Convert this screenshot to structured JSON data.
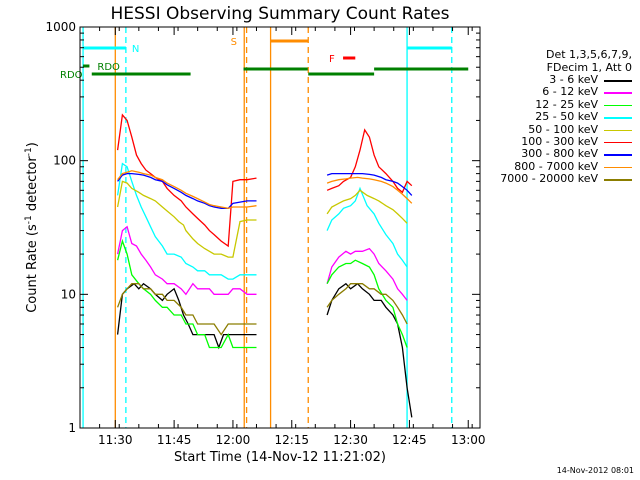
{
  "chart_data": {
    "type": "line",
    "title": "HESSI Observing Summary Count Rates",
    "xlabel": "Start Time (14-Nov-12 11:21:02)",
    "ylabel_main": "Count Rate (s",
    "ylabel_exp1": "-1",
    "ylabel_mid": " detector",
    "ylabel_exp2": "-1",
    "ylabel_end": ")",
    "yscale": "log",
    "ylim": [
      1,
      1000
    ],
    "xlim": [
      11.35,
      13.05
    ],
    "x_ticks": [
      {
        "v": 11.5,
        "label": "11:30"
      },
      {
        "v": 11.75,
        "label": "11:45"
      },
      {
        "v": 12.0,
        "label": "12:00"
      },
      {
        "v": 12.25,
        "label": "12:15"
      },
      {
        "v": 12.5,
        "label": "12:30"
      },
      {
        "v": 12.75,
        "label": "12:45"
      },
      {
        "v": 13.0,
        "label": "13:00"
      }
    ],
    "y_ticks": [
      {
        "v": 1,
        "label": "1"
      },
      {
        "v": 10,
        "label": "10"
      },
      {
        "v": 100,
        "label": "100"
      },
      {
        "v": 1000,
        "label": "1000"
      }
    ],
    "legend_header": [
      "Det 1,3,5,6,7,9,",
      "FDecim 1, Att 0"
    ],
    "series": [
      {
        "name": "3 - 6 keV",
        "color": "#000000",
        "x": [
          11.51,
          11.53,
          11.55,
          11.58,
          11.6,
          11.62,
          11.65,
          11.67,
          11.7,
          11.72,
          11.75,
          11.77,
          11.79,
          11.81,
          11.83,
          11.85,
          11.88,
          11.9,
          11.92,
          11.94,
          11.96,
          11.98,
          12.0,
          12.02,
          12.05,
          12.08,
          12.1
        ],
        "y": [
          5,
          10,
          11,
          12,
          11,
          12,
          11,
          10,
          9,
          10,
          11,
          9,
          7,
          6,
          5,
          5,
          5,
          5,
          5,
          4,
          5,
          5,
          5,
          5,
          5,
          5,
          5
        ],
        "x2": [
          12.4,
          12.42,
          12.45,
          12.48,
          12.5,
          12.53,
          12.55,
          12.58,
          12.6,
          12.63,
          12.65,
          12.68,
          12.7,
          12.72,
          12.74,
          12.76
        ],
        "y2": [
          7,
          9,
          11,
          12,
          11,
          12,
          11,
          10,
          9,
          9,
          8,
          7,
          6,
          4,
          2,
          1.2
        ]
      },
      {
        "name": "6 - 12 keV",
        "color": "#ff00ff",
        "x": [
          11.51,
          11.53,
          11.55,
          11.57,
          11.59,
          11.61,
          11.63,
          11.65,
          11.67,
          11.7,
          11.72,
          11.75,
          11.78,
          11.8,
          11.83,
          11.85,
          11.88,
          11.9,
          11.92,
          11.95,
          11.98,
          12.0,
          12.03,
          12.06,
          12.08,
          12.1
        ],
        "y": [
          20,
          30,
          32,
          24,
          23,
          20,
          18,
          16,
          14,
          13,
          12,
          12,
          11,
          10,
          12,
          11,
          11,
          11,
          10,
          10,
          10,
          11,
          11,
          10,
          10,
          10
        ],
        "x2": [
          12.4,
          12.42,
          12.45,
          12.48,
          12.5,
          12.52,
          12.55,
          12.58,
          12.6,
          12.62,
          12.65,
          12.68,
          12.7,
          12.72,
          12.74
        ],
        "y2": [
          12,
          16,
          19,
          21,
          20,
          21,
          21,
          22,
          20,
          17,
          15,
          13,
          11,
          10,
          9
        ]
      },
      {
        "name": "12 - 25 keV",
        "color": "#00ff00",
        "x": [
          11.51,
          11.53,
          11.55,
          11.57,
          11.6,
          11.62,
          11.65,
          11.67,
          11.7,
          11.72,
          11.75,
          11.78,
          11.8,
          11.83,
          11.85,
          11.88,
          11.9,
          11.92,
          11.95,
          11.98,
          12.0,
          12.03,
          12.06,
          12.1
        ],
        "y": [
          18,
          25,
          20,
          14,
          12,
          11,
          10,
          9,
          8,
          8,
          7,
          7,
          6,
          6,
          5,
          5,
          4,
          4,
          4,
          5,
          4,
          4,
          4,
          4
        ],
        "x2": [
          12.4,
          12.42,
          12.45,
          12.48,
          12.5,
          12.52,
          12.55,
          12.58,
          12.6,
          12.62,
          12.65,
          12.68,
          12.7,
          12.72,
          12.74
        ],
        "y2": [
          12,
          14,
          16,
          17,
          17,
          18,
          17,
          16,
          14,
          11,
          9,
          8,
          6,
          5,
          4
        ]
      },
      {
        "name": "25 - 50 keV",
        "color": "#00ffff",
        "x": [
          11.51,
          11.53,
          11.55,
          11.57,
          11.59,
          11.61,
          11.63,
          11.65,
          11.67,
          11.7,
          11.72,
          11.75,
          11.78,
          11.8,
          11.83,
          11.85,
          11.88,
          11.9,
          11.92,
          11.95,
          11.98,
          12.0,
          12.03,
          12.06,
          12.1
        ],
        "y": [
          55,
          95,
          90,
          70,
          55,
          45,
          38,
          32,
          27,
          23,
          20,
          20,
          19,
          17,
          16,
          15,
          15,
          14,
          14,
          14,
          13,
          13,
          14,
          14,
          14
        ],
        "x2": [
          12.4,
          12.42,
          12.45,
          12.47,
          12.5,
          12.52,
          12.54,
          12.57,
          12.6,
          12.62,
          12.65,
          12.68,
          12.7,
          12.72,
          12.74
        ],
        "y2": [
          30,
          36,
          40,
          44,
          46,
          50,
          62,
          46,
          40,
          34,
          28,
          24,
          20,
          18,
          16
        ]
      },
      {
        "name": "50 - 100 keV",
        "color": "#c8c800",
        "x": [
          11.51,
          11.53,
          11.55,
          11.57,
          11.6,
          11.62,
          11.65,
          11.67,
          11.7,
          11.72,
          11.75,
          11.77,
          11.79,
          11.8,
          11.83,
          11.85,
          11.88,
          11.9,
          11.92,
          11.95,
          11.98,
          12.0,
          12.03,
          12.06,
          12.1
        ],
        "y": [
          45,
          70,
          68,
          62,
          58,
          55,
          52,
          50,
          45,
          42,
          38,
          35,
          33,
          30,
          26,
          24,
          22,
          21,
          20,
          20,
          19,
          19,
          35,
          36,
          36
        ],
        "x2": [
          12.4,
          12.42,
          12.45,
          12.47,
          12.5,
          12.52,
          12.54,
          12.57,
          12.6,
          12.62,
          12.65,
          12.68,
          12.7,
          12.72,
          12.74
        ],
        "y2": [
          40,
          45,
          48,
          50,
          52,
          55,
          60,
          55,
          52,
          50,
          46,
          43,
          40,
          37,
          34
        ]
      },
      {
        "name": "100 - 300 keV",
        "color": "#ff0000",
        "x": [
          11.51,
          11.53,
          11.55,
          11.57,
          11.59,
          11.61,
          11.63,
          11.65,
          11.67,
          11.7,
          11.72,
          11.75,
          11.78,
          11.8,
          11.83,
          11.85,
          11.88,
          11.9,
          11.92,
          11.95,
          11.98,
          12.0,
          12.03,
          12.06,
          12.1
        ],
        "y": [
          120,
          220,
          200,
          150,
          110,
          95,
          85,
          80,
          75,
          70,
          62,
          55,
          50,
          45,
          40,
          37,
          33,
          30,
          28,
          25,
          23,
          70,
          72,
          72,
          74
        ],
        "x2": [
          12.4,
          12.42,
          12.45,
          12.47,
          12.5,
          12.52,
          12.54,
          12.56,
          12.58,
          12.6,
          12.62,
          12.65,
          12.68,
          12.7,
          12.72,
          12.74,
          12.76
        ],
        "y2": [
          60,
          62,
          65,
          70,
          75,
          90,
          120,
          170,
          150,
          110,
          90,
          80,
          70,
          62,
          58,
          70,
          65
        ]
      },
      {
        "name": "300 - 800 keV",
        "color": "#0000ff",
        "x": [
          11.51,
          11.53,
          11.55,
          11.57,
          11.6,
          11.62,
          11.65,
          11.67,
          11.7,
          11.72,
          11.75,
          11.78,
          11.8,
          11.83,
          11.85,
          11.88,
          11.9,
          11.92,
          11.95,
          11.98,
          12.0,
          12.03,
          12.06,
          12.1
        ],
        "y": [
          70,
          78,
          80,
          80,
          79,
          78,
          75,
          72,
          70,
          66,
          62,
          58,
          55,
          52,
          50,
          48,
          46,
          45,
          44,
          44,
          48,
          49,
          50,
          50
        ],
        "x2": [
          12.4,
          12.42,
          12.45,
          12.48,
          12.5,
          12.53,
          12.55,
          12.58,
          12.6,
          12.63,
          12.65,
          12.68,
          12.7,
          12.72,
          12.74,
          12.76
        ],
        "y2": [
          78,
          80,
          80,
          80,
          80,
          80,
          80,
          79,
          78,
          75,
          72,
          70,
          68,
          64,
          60,
          55
        ]
      },
      {
        "name": "800 - 7000 keV",
        "color": "#ff8c00",
        "x": [
          11.51,
          11.53,
          11.55,
          11.57,
          11.6,
          11.62,
          11.65,
          11.67,
          11.7,
          11.72,
          11.75,
          11.78,
          11.8,
          11.83,
          11.85,
          11.88,
          11.9,
          11.92,
          11.95,
          11.98,
          12.0,
          12.03,
          12.06,
          12.1
        ],
        "y": [
          72,
          80,
          82,
          84,
          82,
          80,
          78,
          75,
          72,
          68,
          64,
          60,
          57,
          54,
          52,
          49,
          47,
          46,
          45,
          44,
          45,
          45,
          45,
          46
        ],
        "x2": [
          12.4,
          12.42,
          12.45,
          12.48,
          12.5,
          12.53,
          12.55,
          12.58,
          12.6,
          12.63,
          12.65,
          12.68,
          12.7,
          12.72,
          12.74,
          12.76
        ],
        "y2": [
          68,
          70,
          72,
          73,
          74,
          75,
          74,
          73,
          72,
          70,
          68,
          64,
          60,
          56,
          52,
          48
        ]
      },
      {
        "name": "7000 - 20000 keV",
        "color": "#8b7d00",
        "x": [
          11.51,
          11.53,
          11.55,
          11.57,
          11.6,
          11.62,
          11.65,
          11.67,
          11.7,
          11.72,
          11.75,
          11.78,
          11.8,
          11.83,
          11.85,
          11.88,
          11.9,
          11.92,
          11.95,
          11.98,
          12.0,
          12.03,
          12.06,
          12.1
        ],
        "y": [
          8,
          10,
          11,
          12,
          12,
          11,
          11,
          10,
          10,
          9,
          9,
          8,
          7,
          7,
          6,
          6,
          6,
          6,
          5,
          6,
          6,
          6,
          6,
          6
        ],
        "x2": [
          12.4,
          12.42,
          12.45,
          12.48,
          12.5,
          12.53,
          12.55,
          12.58,
          12.6,
          12.63,
          12.65,
          12.68,
          12.7,
          12.72,
          12.74
        ],
        "y2": [
          8,
          9,
          10,
          11,
          12,
          12,
          12,
          11,
          11,
          10,
          10,
          9,
          8,
          7,
          6
        ]
      }
    ],
    "vlines": [
      {
        "x": 11.363,
        "color": "#00ffff",
        "style": "solid"
      },
      {
        "x": 11.545,
        "color": "#00ffff",
        "style": "dashed"
      },
      {
        "x": 11.5,
        "color": "#ff8c00",
        "style": "solid"
      },
      {
        "x": 12.048,
        "color": "#ff8c00",
        "style": "solid"
      },
      {
        "x": 12.058,
        "color": "#ff8c00",
        "style": "dashed"
      },
      {
        "x": 12.16,
        "color": "#ff8c00",
        "style": "solid"
      },
      {
        "x": 12.32,
        "color": "#ff8c00",
        "style": "dashed"
      },
      {
        "x": 12.74,
        "color": "#00ffff",
        "style": "solid"
      },
      {
        "x": 12.93,
        "color": "#00ffff",
        "style": "dashed"
      }
    ],
    "flag_bars": [
      {
        "label": "N",
        "color": "#00ffff",
        "x0": 11.363,
        "x1": 11.545
      },
      {
        "label": "",
        "color": "#00ffff",
        "x0": 12.74,
        "x1": 12.93
      },
      {
        "label": "S",
        "color": "#ff8c00",
        "x0": 12.16,
        "x1": 12.32
      },
      {
        "label": "F",
        "color": "#ff0000",
        "x0": 12.468,
        "x1": 12.52
      },
      {
        "label": "RDO",
        "color": "#008000",
        "x0": 11.363,
        "x1": 11.39
      },
      {
        "label": "RDO",
        "color": "#008000",
        "x0": 11.4,
        "x1": 11.82
      },
      {
        "label": "",
        "color": "#008000",
        "x0": 12.045,
        "x1": 12.318
      },
      {
        "label": "",
        "color": "#008000",
        "x0": 12.32,
        "x1": 12.6
      },
      {
        "label": "",
        "color": "#008000",
        "x0": 12.6,
        "x1": 13.0
      }
    ]
  },
  "timestamp": "14-Nov-2012 08:01"
}
